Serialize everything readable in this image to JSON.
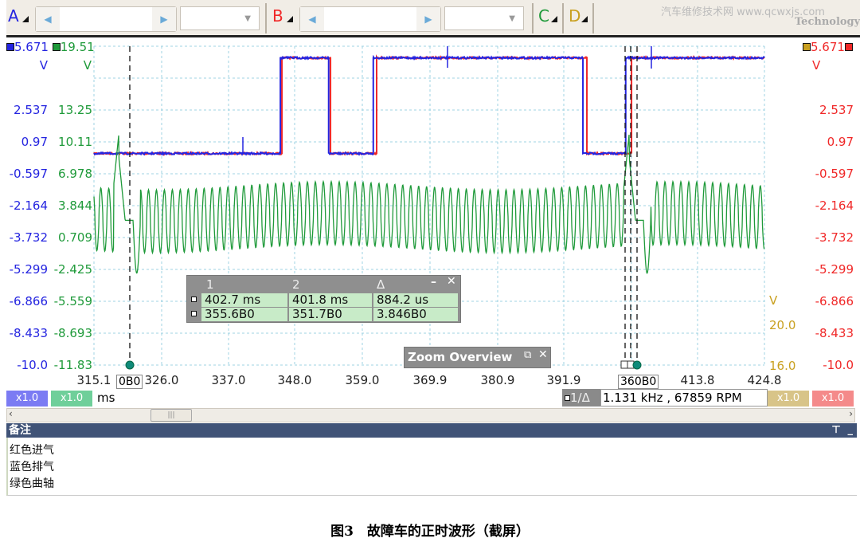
{
  "toolbar": {
    "channel_a": "A",
    "channel_b": "B",
    "channel_c": "C",
    "channel_d": "D",
    "watermark": "汽车维修技术网 www.qcwxjs.com",
    "watermark_sub": "Technology"
  },
  "colors": {
    "a": "#2424e0",
    "b": "#f02828",
    "c": "#1f9a3a",
    "d": "#c9a020",
    "grid": "#9fd3e3",
    "notes_header": "#405377"
  },
  "axis_a": {
    "top": "5.671",
    "unit": "V",
    "ticks": [
      "2.537",
      "0.97",
      "-0.597",
      "-2.164",
      "-3.732",
      "-5.299",
      "-6.866",
      "-8.433",
      "-10.0"
    ],
    "range": [
      -10.0,
      5.671
    ]
  },
  "axis_c": {
    "top": "19.51",
    "unit": "V",
    "ticks": [
      "13.25",
      "10.11",
      "6.978",
      "3.844",
      "0.709",
      "-2.425",
      "-5.559",
      "-8.693",
      "-11.83"
    ],
    "range": [
      -11.83,
      19.51
    ]
  },
  "axis_b": {
    "top": "5.671",
    "unit": "V",
    "ticks": [
      "2.537",
      "0.97",
      "-0.597",
      "-2.164",
      "-3.732",
      "-5.299",
      "-6.866",
      "-8.433",
      "-10.0"
    ]
  },
  "axis_d": {
    "unit": "V",
    "ticks": [
      "20.0",
      "16.0"
    ]
  },
  "x_axis": {
    "ticks": [
      "315.1",
      "326.0",
      "337.0",
      "348.0",
      "359.0",
      "369.9",
      "380.9",
      "391.9",
      "413.8",
      "424.8"
    ],
    "unit": "ms",
    "range": [
      315.1,
      424.8
    ]
  },
  "cursors": {
    "ref_label": "0B0",
    "active_label": "360B0"
  },
  "waveforms": {
    "exhaust_blue": {
      "high_v": 5.1,
      "low_v": 0.4,
      "start": "low",
      "edges_ms": [
        345.6,
        353.5,
        360.8,
        395.1,
        402.1
      ]
    },
    "intake_red": {
      "high_v": 5.1,
      "low_v": 0.4,
      "start": "low",
      "edges_ms": [
        345.85,
        353.8,
        361.35,
        395.75,
        403.05
      ]
    },
    "crank_green": {
      "center_v": 2.7,
      "amplitude_v": 3.1,
      "period_ms": 1.3,
      "gap_ms": [
        318.9,
        402.4
      ]
    }
  },
  "measurements": {
    "headers": [
      "1",
      "2",
      "Δ"
    ],
    "rows": [
      [
        "402.7 ms",
        "401.8 ms",
        "884.2 us"
      ],
      [
        "355.6B0",
        "351.7B0",
        "3.846B0"
      ]
    ]
  },
  "zoom_overview": {
    "title": "Zoom Overview"
  },
  "scales": {
    "a": "x1.0",
    "c": "x1.0",
    "d": "x1.0",
    "b": "x1.0"
  },
  "freq_readout": {
    "label": "1/Δ",
    "value": "1.131 kHz , 67859 RPM"
  },
  "notes": {
    "title": "备注",
    "lines": [
      "红色进气",
      "蓝色排气",
      "绿色曲轴"
    ]
  },
  "caption": "图3　故障车的正时波形（截屏）"
}
